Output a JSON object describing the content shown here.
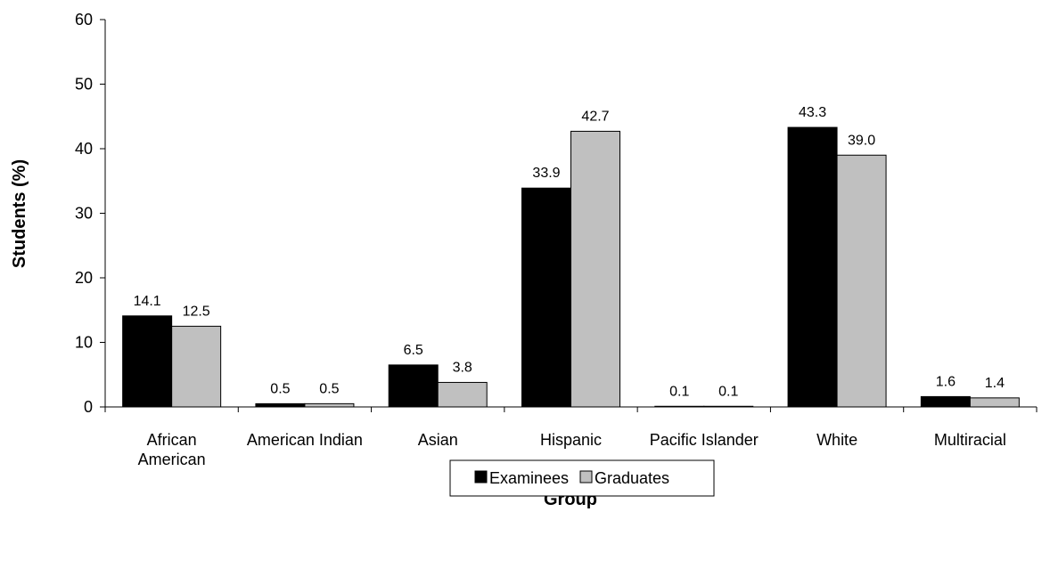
{
  "chart_data": {
    "type": "bar",
    "title": "",
    "xlabel": "Group",
    "ylabel": "Students (%)",
    "ylim": [
      0,
      60
    ],
    "yticks": [
      0,
      10,
      20,
      30,
      40,
      50,
      60
    ],
    "grid": false,
    "legend_position": "bottom",
    "categories": [
      [
        "African",
        "American"
      ],
      [
        "American Indian"
      ],
      [
        "Asian"
      ],
      [
        "Hispanic"
      ],
      [
        "Pacific Islander"
      ],
      [
        "White"
      ],
      [
        "Multiracial"
      ]
    ],
    "series": [
      {
        "name": "Examinees",
        "color": "#000000",
        "values": [
          14.1,
          0.5,
          6.5,
          33.9,
          0.1,
          43.3,
          1.6
        ],
        "labels": [
          "14.1",
          "0.5",
          "6.5",
          "33.9",
          "0.1",
          "43.3",
          "1.6"
        ]
      },
      {
        "name": "Graduates",
        "color": "#c0c0c0",
        "values": [
          12.5,
          0.5,
          3.8,
          42.7,
          0.1,
          39.0,
          1.4
        ],
        "labels": [
          "12.5",
          "0.5",
          "3.8",
          "42.7",
          "0.1",
          "39.0",
          "1.4"
        ]
      }
    ]
  }
}
